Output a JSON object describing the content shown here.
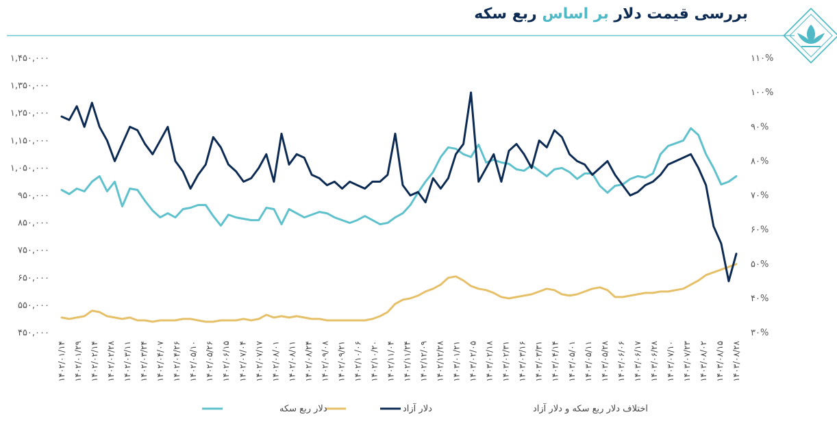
{
  "header": {
    "title_part1": "بررسی قیمت دلار ",
    "title_part2": "بر اساس",
    "title_part3": " ربع سکه",
    "accent_color": "#4fb9c6",
    "dark_color": "#0d2b52",
    "logo_icon": "lotus-logo-icon"
  },
  "chart_data": {
    "type": "line",
    "left_axis_ticks": [
      "۱,۴۵۰,۰۰۰",
      "۱,۳۵۰,۰۰۰",
      "۱,۲۵۰,۰۰۰",
      "۱,۱۵۰,۰۰۰",
      "۱,۰۵۰,۰۰۰",
      "۹۵۰,۰۰۰",
      "۸۵۰,۰۰۰",
      "۷۵۰,۰۰۰",
      "۶۵۰,۰۰۰",
      "۵۵۰,۰۰۰",
      "۴۵۰,۰۰۰"
    ],
    "right_axis_ticks": [
      "۱۱۰%",
      "۱۰۰%",
      "۹۰%",
      "۸۰%",
      "۷۰%",
      "۶۰%",
      "۵۰%",
      "۴۰%",
      "۳۰%"
    ],
    "left_ylim": [
      450000,
      1450000
    ],
    "right_ylim": [
      30,
      110
    ],
    "x_labels": [
      "۱۴۰۲/۰۱/۱۴",
      "۱۴۰۲/۰۱/۲۹",
      "۱۴۰۲/۰۲/۱۴",
      "۱۴۰۲/۰۲/۲۸",
      "۱۴۰۲/۰۳/۱۱",
      "۱۴۰۲/۰۳/۲۴",
      "۱۴۰۲/۰۴/۰۷",
      "۱۴۰۲/۰۴/۲۶",
      "۱۴۰۲/۰۵/۱۰",
      "۱۴۰۲/۰۵/۲۶",
      "۱۴۰۲/۰۶/۱۵",
      "۱۴۰۲/۰۷/۰۴",
      "۱۴۰۲/۰۷/۱۷",
      "۱۴۰۲/۰۸/۰۱",
      "۱۴۰۲/۰۸/۱۱",
      "۱۴۰۲/۰۸/۲۴",
      "۱۴۰۲/۰۹/۰۸",
      "۱۴۰۲/۰۹/۲۱",
      "۱۴۰۲/۱۰/۰۶",
      "۱۴۰۲/۱۰/۲۰",
      "۱۴۰۲/۱۱/۰۴",
      "۱۴۰۲/۱۱/۲۴",
      "۱۴۰۲/۱۲/۰۹",
      "۱۴۰۲/۱۲/۲۸",
      "۱۴۰۳/۰۱/۲۱",
      "۱۴۰۳/۰۲/۰۵",
      "۱۴۰۳/۰۲/۱۸",
      "۱۴۰۳/۰۲/۳۱",
      "۱۴۰۳/۰۳/۱۶",
      "۱۴۰۳/۰۳/۳۱",
      "۱۴۰۳/۰۴/۱۴",
      "۱۴۰۳/۰۵/۰۱",
      "۱۴۰۳/۰۵/۱۱",
      "۱۴۰۳/۰۵/۲۸",
      "۱۴۰۳/۰۶/۰۶",
      "۱۴۰۳/۰۶/۱۷",
      "۱۴۰۳/۰۶/۲۸",
      "۱۴۰۳/۰۷/۱۰",
      "۱۴۰۳/۰۷/۲۳",
      "۱۴۰۳/۰۸/۰۲",
      "۱۴۰۳/۰۸/۱۵",
      "۱۴۰۳/۰۸/۲۸"
    ],
    "legend_position": "bottom",
    "grid": false,
    "series": [
      {
        "name": "دلار ربع سکه",
        "color": "#5ec1cc",
        "axis": "left",
        "values": [
          970000,
          955000,
          975000,
          965000,
          1000000,
          1020000,
          965000,
          1000000,
          910000,
          975000,
          970000,
          930000,
          895000,
          870000,
          885000,
          870000,
          900000,
          905000,
          915000,
          915000,
          875000,
          840000,
          880000,
          870000,
          865000,
          860000,
          860000,
          905000,
          900000,
          845000,
          900000,
          885000,
          870000,
          880000,
          890000,
          885000,
          870000,
          860000,
          850000,
          860000,
          875000,
          860000,
          845000,
          850000,
          870000,
          885000,
          915000,
          960000,
          1000000,
          1035000,
          1090000,
          1125000,
          1120000,
          1100000,
          1090000,
          1135000,
          1070000,
          1080000,
          1070000,
          1065000,
          1045000,
          1040000,
          1060000,
          1040000,
          1020000,
          1045000,
          1050000,
          1035000,
          1010000,
          1030000,
          1030000,
          985000,
          960000,
          985000,
          990000,
          1010000,
          1020000,
          1015000,
          1030000,
          1100000,
          1130000,
          1140000,
          1150000,
          1195000,
          1170000,
          1100000,
          1050000,
          990000,
          1000000,
          1020000
        ]
      },
      {
        "name": "دلار آزاد",
        "color": "#e6c069",
        "axis": "left",
        "values": [
          505000,
          500000,
          505000,
          510000,
          530000,
          525000,
          510000,
          505000,
          500000,
          505000,
          495000,
          495000,
          490000,
          495000,
          495000,
          495000,
          500000,
          500000,
          495000,
          490000,
          490000,
          495000,
          495000,
          495000,
          500000,
          495000,
          500000,
          515000,
          505000,
          510000,
          505000,
          510000,
          505000,
          500000,
          500000,
          495000,
          495000,
          495000,
          495000,
          495000,
          495000,
          500000,
          510000,
          525000,
          555000,
          570000,
          575000,
          585000,
          600000,
          610000,
          625000,
          650000,
          655000,
          640000,
          620000,
          610000,
          605000,
          595000,
          580000,
          575000,
          580000,
          585000,
          590000,
          600000,
          610000,
          605000,
          590000,
          585000,
          590000,
          600000,
          610000,
          615000,
          605000,
          580000,
          580000,
          585000,
          590000,
          595000,
          595000,
          600000,
          600000,
          605000,
          610000,
          625000,
          640000,
          660000,
          670000,
          680000,
          690000,
          700000
        ]
      },
      {
        "name": "اختلاف دلار ربع سکه و دلار آزاد",
        "color": "#0d2b52",
        "axis": "right",
        "values": [
          93,
          92,
          96,
          90,
          97,
          90,
          86,
          80,
          85,
          90,
          89,
          85,
          82,
          86,
          90,
          80,
          77,
          72,
          76,
          79,
          87,
          84,
          79,
          77,
          74,
          75,
          78,
          82,
          74,
          88,
          79,
          82,
          81,
          76,
          75,
          73,
          74,
          72,
          74,
          73,
          72,
          74,
          74,
          76,
          88,
          73,
          70,
          71,
          68,
          75,
          72,
          75,
          82,
          85,
          100,
          74,
          78,
          82,
          74,
          83,
          85,
          82,
          78,
          86,
          84,
          89,
          87,
          82,
          80,
          79,
          76,
          78,
          80,
          76,
          73,
          70,
          71,
          73,
          74,
          76,
          79,
          80,
          81,
          82,
          78,
          73,
          61,
          56,
          45,
          53
        ]
      }
    ]
  }
}
